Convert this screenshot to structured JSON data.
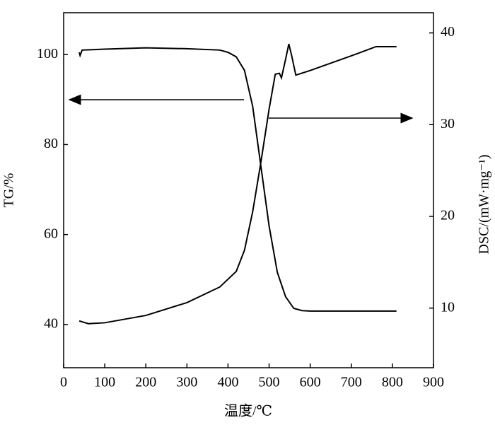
{
  "chart_data": {
    "type": "line",
    "x_label": "温度/℃",
    "y_label": "TG/%",
    "y2_label": "DSC/(mW·mg⁻¹)",
    "xlim": [
      0,
      900
    ],
    "xticks": [
      0,
      100,
      200,
      300,
      400,
      500,
      600,
      700,
      800,
      900
    ],
    "ylim": [
      30.4,
      109.3
    ],
    "yticks": [
      40,
      60,
      80,
      100
    ],
    "y2lim": [
      3.5,
      42.2
    ],
    "y2ticks": [
      10,
      20,
      30,
      40
    ],
    "series": [
      {
        "name": "TG",
        "color": "#000000",
        "x": [
          38,
          40,
          45,
          100,
          200,
          300,
          380,
          400,
          420,
          440,
          460,
          480,
          500,
          520,
          540,
          560,
          580,
          600,
          700,
          810
        ],
        "values": [
          100.5,
          99.8,
          101.0,
          101.2,
          101.5,
          101.3,
          101.0,
          100.5,
          99.5,
          96.5,
          88.5,
          75.2,
          61.9,
          51.6,
          46.2,
          43.6,
          43.1,
          43.0,
          43.0,
          43.0
        ]
      },
      {
        "name": "DSC",
        "color": "#000000",
        "axis": "y2",
        "x": [
          38,
          60,
          100,
          200,
          300,
          380,
          420,
          440,
          460,
          480,
          500,
          515,
          525,
          530,
          540,
          548,
          555,
          565,
          600,
          700,
          760,
          810
        ],
        "values": [
          8.6,
          8.3,
          8.4,
          9.2,
          10.6,
          12.3,
          14.0,
          16.3,
          20.5,
          25.9,
          31.7,
          35.5,
          35.6,
          35.1,
          37.1,
          38.8,
          37.5,
          35.4,
          35.9,
          37.5,
          38.5,
          38.5
        ]
      }
    ]
  }
}
